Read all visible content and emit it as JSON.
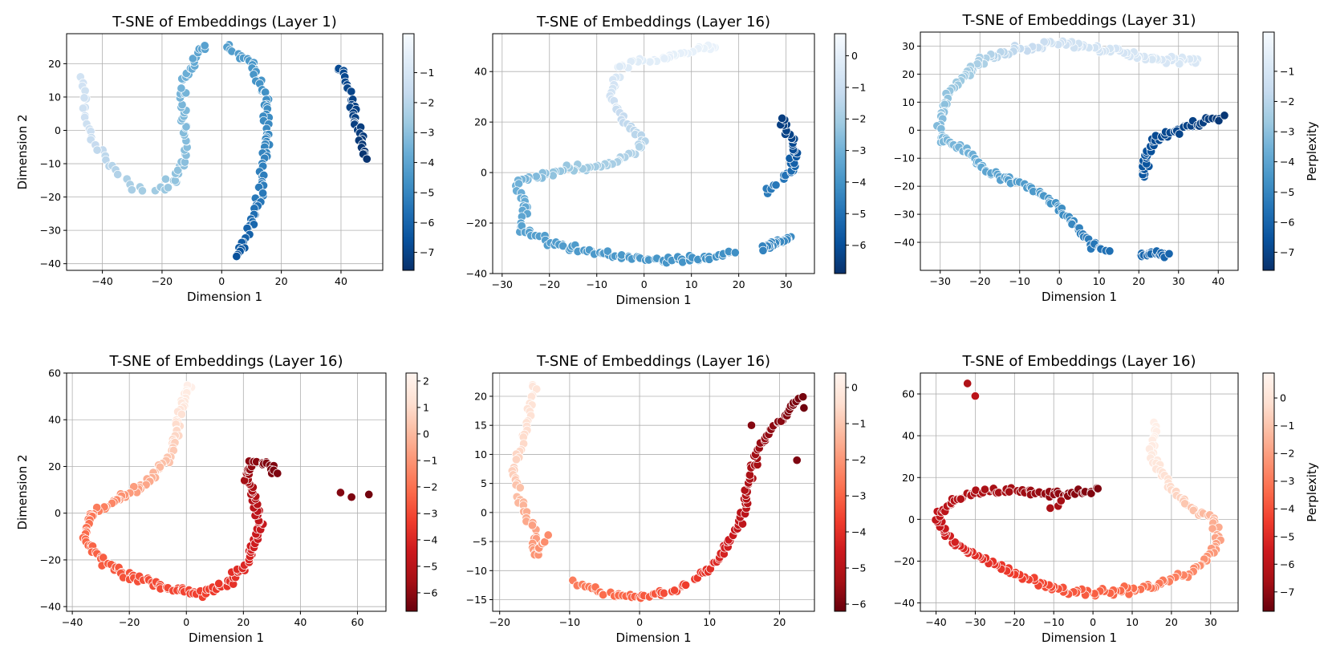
{
  "chart_data": [
    {
      "type": "scatter",
      "title": "T-SNE of Embeddings (Layer 1)",
      "xlabel": "Dimension 1",
      "ylabel": "Dimension 2",
      "xlim": [
        -52,
        54
      ],
      "ylim": [
        -42,
        29
      ],
      "xticks": [
        -40,
        -20,
        0,
        20,
        40
      ],
      "yticks": [
        -40,
        -30,
        -20,
        -10,
        0,
        10,
        20
      ],
      "colormap": "Blues",
      "colorbar": {
        "label": "",
        "range": [
          -7.6,
          0.3
        ],
        "ticks": [
          -7,
          -6,
          -5,
          -4,
          -3,
          -2,
          -1
        ]
      },
      "grid": true,
      "clusters": [
        {
          "path": [
            [
              -47,
              16,
              -1.2
            ],
            [
              -45,
              0,
              -1.4
            ],
            [
              -38,
              -10,
              -2.0
            ],
            [
              -30,
              -17,
              -2.4
            ],
            [
              -27,
              -18,
              -2.5
            ]
          ],
          "count": 30
        },
        {
          "path": [
            [
              -22,
              -18,
              -2.6
            ],
            [
              -15,
              -15,
              -2.9
            ],
            [
              -12,
              -5,
              -3.1
            ],
            [
              -13,
              6,
              -3.3
            ],
            [
              -13,
              14,
              -3.5
            ],
            [
              -8,
              24,
              -4.0
            ],
            [
              -5,
              25,
              -4.1
            ]
          ],
          "count": 55
        },
        {
          "path": [
            [
              2,
              25,
              -4.2
            ],
            [
              10,
              20,
              -4.4
            ],
            [
              15,
              10,
              -4.7
            ],
            [
              15,
              -5,
              -5.0
            ],
            [
              13,
              -20,
              -5.4
            ],
            [
              9,
              -30,
              -6.0
            ],
            [
              5,
              -38,
              -6.6
            ]
          ],
          "count": 85
        },
        {
          "path": [
            [
              40,
              19,
              -6.8
            ],
            [
              43,
              10,
              -7.0
            ],
            [
              46,
              0,
              -7.2
            ],
            [
              48,
              -8,
              -7.5
            ]
          ],
          "count": 40
        }
      ]
    },
    {
      "type": "scatter",
      "title": "T-SNE of Embeddings (Layer 16)",
      "xlabel": "Dimension 1",
      "ylabel": "",
      "xlim": [
        -32,
        36
      ],
      "ylim": [
        -40,
        55
      ],
      "xticks": [
        -30,
        -20,
        -10,
        0,
        10,
        20,
        30
      ],
      "yticks": [
        -40,
        -20,
        0,
        20,
        40
      ],
      "colormap": "Blues",
      "colorbar": {
        "label": "",
        "range": [
          -6.9,
          0.7
        ],
        "ticks": [
          -6,
          -5,
          -4,
          -3,
          -2,
          -1,
          0
        ]
      },
      "grid": true,
      "clusters": [
        {
          "path": [
            [
              15,
              50,
              0.2
            ],
            [
              5,
              46,
              0.0
            ],
            [
              -5,
              42,
              -0.3
            ],
            [
              -7,
              30,
              -0.8
            ],
            [
              -4,
              20,
              -1.3
            ],
            [
              0,
              12,
              -1.6
            ],
            [
              -5,
              5,
              -1.8
            ],
            [
              -10,
              2,
              -2.0
            ],
            [
              -15,
              2,
              -2.2
            ],
            [
              -20,
              0,
              -2.4
            ],
            [
              -27,
              -4,
              -3.0
            ],
            [
              -25,
              -15,
              -3.3
            ],
            [
              -26,
              -22,
              -3.5
            ],
            [
              -20,
              -28,
              -3.7
            ],
            [
              -10,
              -32,
              -3.8
            ],
            [
              0,
              -34,
              -3.9
            ],
            [
              10,
              -34,
              -4.0
            ],
            [
              19,
              -32,
              -4.1
            ]
          ],
          "count": 200
        },
        {
          "path": [
            [
              31,
              -26,
              -4.3
            ],
            [
              28,
              -28,
              -4.4
            ],
            [
              25,
              -30,
              -4.5
            ]
          ],
          "count": 25
        },
        {
          "path": [
            [
              26,
              -7,
              -4.7
            ],
            [
              31,
              0,
              -5.0
            ],
            [
              32,
              8,
              -6.0
            ],
            [
              31,
              14,
              -6.3
            ],
            [
              29,
              21,
              -6.5
            ]
          ],
          "count": 40
        }
      ]
    },
    {
      "type": "scatter",
      "title": "T-SNE of Embeddings (Layer 31)",
      "xlabel": "Dimension 1",
      "ylabel": "",
      "xlim": [
        -35,
        45
      ],
      "ylim": [
        -50,
        35
      ],
      "xticks": [
        -30,
        -20,
        -10,
        0,
        10,
        20,
        30,
        40
      ],
      "yticks": [
        -40,
        -30,
        -20,
        -10,
        0,
        10,
        20,
        30
      ],
      "colormap": "Blues",
      "colorbar": {
        "label": "Perplexity",
        "range": [
          -7.6,
          0.3
        ],
        "ticks": [
          -7,
          -6,
          -5,
          -4,
          -3,
          -2,
          -1
        ]
      },
      "grid": true,
      "clusters": [
        {
          "path": [
            [
              35,
              25,
              -0.9
            ],
            [
              25,
              25,
              -1.0
            ],
            [
              15,
              28,
              -1.1
            ],
            [
              0,
              31,
              -1.3
            ],
            [
              -10,
              29,
              -1.7
            ],
            [
              -20,
              25,
              -2.3
            ],
            [
              -27,
              15,
              -2.8
            ],
            [
              -30,
              5,
              -3.1
            ],
            [
              -30,
              -3,
              -3.3
            ],
            [
              -24,
              -7,
              -3.5
            ],
            [
              -20,
              -12,
              -3.8
            ],
            [
              -18,
              -15,
              -4.0
            ],
            [
              -12,
              -18,
              -4.2
            ],
            [
              -5,
              -22,
              -4.4
            ],
            [
              0,
              -28,
              -4.7
            ],
            [
              5,
              -35,
              -5.0
            ],
            [
              8,
              -41,
              -5.4
            ],
            [
              12,
              -43,
              -5.7
            ]
          ],
          "count": 220
        },
        {
          "path": [
            [
              20,
              -44,
              -5.9
            ],
            [
              27,
              -44,
              -6.0
            ]
          ],
          "count": 20
        },
        {
          "path": [
            [
              21,
              -17,
              -6.4
            ],
            [
              22,
              -8,
              -6.6
            ],
            [
              25,
              -2,
              -6.8
            ],
            [
              32,
              1,
              -7.0
            ],
            [
              38,
              4,
              -7.2
            ],
            [
              41,
              4,
              -7.4
            ]
          ],
          "count": 55
        }
      ]
    },
    {
      "type": "scatter",
      "title": "T-SNE of Embeddings (Layer 16)",
      "xlabel": "Dimension 1",
      "ylabel": "Dimension 2",
      "xlim": [
        -42,
        70
      ],
      "ylim": [
        -42,
        60
      ],
      "xticks": [
        -40,
        -20,
        0,
        20,
        40,
        60
      ],
      "yticks": [
        -40,
        -20,
        0,
        20,
        40,
        60
      ],
      "colormap": "Reds",
      "colorbar": {
        "label": "",
        "range": [
          -6.7,
          2.3
        ],
        "ticks": [
          -6,
          -5,
          -4,
          -3,
          -2,
          -1,
          0,
          1,
          2
        ]
      },
      "grid": true,
      "clusters": [
        {
          "path": [
            [
              1,
              55,
              2.0
            ],
            [
              -3,
              40,
              1.2
            ],
            [
              -5,
              25,
              0.5
            ],
            [
              -15,
              12,
              -0.5
            ],
            [
              -25,
              5,
              -1.3
            ],
            [
              -33,
              0,
              -1.8
            ],
            [
              -36,
              -10,
              -2.2
            ],
            [
              -30,
              -20,
              -2.5
            ],
            [
              -20,
              -27,
              -2.8
            ],
            [
              -5,
              -32,
              -3.0
            ],
            [
              5,
              -35,
              -3.2
            ],
            [
              15,
              -30,
              -3.6
            ],
            [
              22,
              -20,
              -4.0
            ],
            [
              26,
              -5,
              -4.6
            ],
            [
              24,
              5,
              -5.1
            ],
            [
              21,
              15,
              -5.6
            ],
            [
              23,
              22,
              -6.0
            ],
            [
              28,
              22,
              -6.2
            ],
            [
              32,
              17,
              -6.3
            ]
          ],
          "count": 230
        },
        {
          "path": [
            [
              54,
              9,
              -6.2
            ],
            [
              57,
              8,
              -6.3
            ]
          ],
          "count": 2
        },
        {
          "path": [
            [
              64,
              8,
              -6.5
            ]
          ],
          "count": 1
        }
      ]
    },
    {
      "type": "scatter",
      "title": "T-SNE of Embeddings (Layer 16)",
      "xlabel": "Dimension 1",
      "ylabel": "",
      "xlim": [
        -21,
        25
      ],
      "ylim": [
        -17,
        24
      ],
      "xticks": [
        -20,
        -10,
        0,
        10,
        20
      ],
      "yticks": [
        -15,
        -10,
        -5,
        0,
        5,
        10,
        15,
        20
      ],
      "colormap": "Reds",
      "colorbar": {
        "label": "",
        "range": [
          -6.2,
          0.4
        ],
        "ticks": [
          -6,
          -5,
          -4,
          -3,
          -2,
          -1,
          0
        ]
      },
      "grid": true,
      "clusters": [
        {
          "path": [
            [
              -15,
              22,
              -0.2
            ],
            [
              -16,
              15,
              -0.4
            ],
            [
              -18,
              7,
              -0.8
            ],
            [
              -17,
              2,
              -1.3
            ],
            [
              -15,
              -3,
              -1.8
            ],
            [
              -15,
              -8,
              -2.0
            ],
            [
              -13,
              -4,
              -2.2
            ]
          ],
          "count": 60
        },
        {
          "path": [
            [
              -9,
              -12,
              -2.5
            ],
            [
              -5,
              -14,
              -2.8
            ],
            [
              0,
              -14.5,
              -3.1
            ],
            [
              5,
              -13.5,
              -3.5
            ],
            [
              10,
              -10,
              -4.0
            ],
            [
              13,
              -5,
              -4.5
            ],
            [
              15,
              0,
              -4.9
            ],
            [
              16,
              8,
              -5.3
            ],
            [
              18,
              13,
              -5.6
            ],
            [
              21,
              17,
              -5.8
            ],
            [
              23,
              20,
              -6.0
            ]
          ],
          "count": 120
        },
        {
          "path": [
            [
              16,
              15,
              -5.8
            ]
          ],
          "count": 1
        },
        {
          "path": [
            [
              22.5,
              9,
              -5.9
            ]
          ],
          "count": 1
        },
        {
          "path": [
            [
              23.5,
              18,
              -6.1
            ]
          ],
          "count": 1
        }
      ]
    },
    {
      "type": "scatter",
      "title": "T-SNE of Embeddings (Layer 16)",
      "xlabel": "Dimension 1",
      "ylabel": "",
      "xlim": [
        -44,
        37
      ],
      "ylim": [
        -44,
        70
      ],
      "xticks": [
        -40,
        -30,
        -20,
        -10,
        0,
        10,
        20,
        30
      ],
      "yticks": [
        -40,
        -20,
        0,
        20,
        40,
        60
      ],
      "colormap": "Reds",
      "colorbar": {
        "label": "Perplexity",
        "range": [
          -7.7,
          0.9
        ],
        "ticks": [
          -7,
          -6,
          -5,
          -4,
          -3,
          -2,
          -1,
          0
        ]
      },
      "grid": true,
      "clusters": [
        {
          "path": [
            [
              16,
              45,
              0.6
            ],
            [
              15,
              30,
              0.3
            ],
            [
              20,
              15,
              -0.3
            ],
            [
              25,
              5,
              -1.0
            ],
            [
              31,
              0,
              -1.5
            ],
            [
              32,
              -12,
              -2.0
            ],
            [
              25,
              -25,
              -2.6
            ],
            [
              15,
              -32,
              -3.1
            ],
            [
              5,
              -35,
              -3.5
            ],
            [
              -5,
              -35,
              -3.8
            ],
            [
              -15,
              -30,
              -4.3
            ],
            [
              -25,
              -22,
              -4.7
            ],
            [
              -35,
              -12,
              -5.2
            ],
            [
              -40,
              0,
              -5.8
            ],
            [
              -35,
              10,
              -6.2
            ],
            [
              -25,
              14,
              -6.5
            ],
            [
              -15,
              13,
              -6.8
            ],
            [
              -5,
              12,
              -7.1
            ],
            [
              1,
              15,
              -7.3
            ]
          ],
          "count": 240
        },
        {
          "path": [
            [
              -10,
              6,
              -6.5
            ],
            [
              -8,
              7,
              -6.6
            ]
          ],
          "count": 3
        },
        {
          "path": [
            [
              -32,
              65,
              -6.3
            ]
          ],
          "count": 1
        },
        {
          "path": [
            [
              -30,
              59,
              -6.0
            ]
          ],
          "count": 1
        }
      ]
    }
  ]
}
